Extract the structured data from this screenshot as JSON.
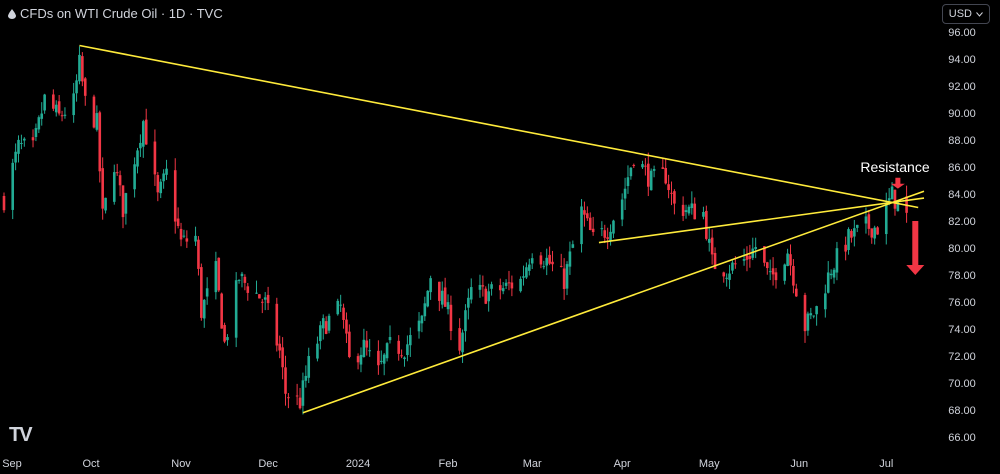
{
  "header": {
    "title": "CFDs on WTI Crude Oil · 1D · TVC",
    "currency": "USD"
  },
  "chart_data": {
    "type": "candlestick",
    "title": "CFDs on WTI Crude Oil · 1D · TVC",
    "ylim": [
      65,
      97
    ],
    "y_ticks": [
      96,
      94,
      92,
      90,
      88,
      86,
      84,
      82,
      80,
      78,
      76,
      74,
      72,
      70,
      68,
      66
    ],
    "y_tick_labels": [
      "96.00",
      "94.00",
      "92.00",
      "90.00",
      "88.00",
      "86.00",
      "84.00",
      "82.00",
      "80.00",
      "78.00",
      "76.00",
      "74.00",
      "72.00",
      "70.00",
      "68.00",
      "66.00"
    ],
    "x_ticks": [
      "Sep",
      "Oct",
      "Nov",
      "Dec",
      "2024",
      "Feb",
      "Mar",
      "Apr",
      "May",
      "Jun",
      "Jul"
    ],
    "x_tick_dates": [
      "2023-09-01",
      "2023-10-01",
      "2023-11-01",
      "2023-12-01",
      "2024-01-01",
      "2024-02-01",
      "2024-03-01",
      "2024-04-01",
      "2024-05-01",
      "2024-06-01",
      "2024-07-01"
    ],
    "x_range": [
      "2023-09-01",
      "2024-07-14"
    ],
    "colors": {
      "up": "#22ab94",
      "down": "#f23645",
      "trendline": "#ffeb3b",
      "arrow": "#f23645",
      "text": "#d1d4dc"
    },
    "close_path": [
      [
        "2023-09-01",
        83.6
      ],
      [
        "2023-09-06",
        87.5
      ],
      [
        "2023-09-11",
        87.3
      ],
      [
        "2023-09-15",
        91.0
      ],
      [
        "2023-09-20",
        89.7
      ],
      [
        "2023-09-25",
        90.8
      ],
      [
        "2023-09-27",
        93.6
      ],
      [
        "2023-09-29",
        90.8
      ],
      [
        "2023-10-03",
        89.2
      ],
      [
        "2023-10-05",
        82.3
      ],
      [
        "2023-10-09",
        86.3
      ],
      [
        "2023-10-12",
        82.9
      ],
      [
        "2023-10-16",
        86.7
      ],
      [
        "2023-10-19",
        89.4
      ],
      [
        "2023-10-24",
        83.7
      ],
      [
        "2023-10-27",
        85.5
      ],
      [
        "2023-11-01",
        80.4
      ],
      [
        "2023-11-06",
        80.8
      ],
      [
        "2023-11-08",
        75.3
      ],
      [
        "2023-11-13",
        78.3
      ],
      [
        "2023-11-16",
        72.9
      ],
      [
        "2023-11-21",
        77.8
      ],
      [
        "2023-11-28",
        76.4
      ],
      [
        "2023-11-30",
        75.9
      ],
      [
        "2023-12-05",
        72.3
      ],
      [
        "2023-12-07",
        69.3
      ],
      [
        "2023-12-12",
        68.6
      ],
      [
        "2023-12-15",
        71.4
      ],
      [
        "2023-12-20",
        74.2
      ],
      [
        "2023-12-26",
        75.6
      ],
      [
        "2023-12-29",
        71.6
      ],
      [
        "2024-01-03",
        72.7
      ],
      [
        "2024-01-08",
        70.8
      ],
      [
        "2024-01-12",
        72.7
      ],
      [
        "2024-01-17",
        72.6
      ],
      [
        "2024-01-23",
        74.5
      ],
      [
        "2024-01-26",
        78.0
      ],
      [
        "2024-01-31",
        75.8
      ],
      [
        "2024-02-05",
        72.8
      ],
      [
        "2024-02-09",
        76.8
      ],
      [
        "2024-02-14",
        76.6
      ],
      [
        "2024-02-20",
        77.0
      ],
      [
        "2024-02-26",
        77.6
      ],
      [
        "2024-03-01",
        79.9
      ],
      [
        "2024-03-06",
        79.1
      ],
      [
        "2024-03-12",
        77.6
      ],
      [
        "2024-03-18",
        82.7
      ],
      [
        "2024-03-22",
        80.6
      ],
      [
        "2024-03-27",
        81.4
      ],
      [
        "2024-04-01",
        83.7
      ],
      [
        "2024-04-05",
        86.9
      ],
      [
        "2024-04-11",
        85.0
      ],
      [
        "2024-04-16",
        85.4
      ],
      [
        "2024-04-19",
        83.1
      ],
      [
        "2024-04-24",
        82.8
      ],
      [
        "2024-04-29",
        82.6
      ],
      [
        "2024-05-02",
        78.9
      ],
      [
        "2024-05-07",
        78.4
      ],
      [
        "2024-05-13",
        79.1
      ],
      [
        "2024-05-17",
        80.1
      ],
      [
        "2024-05-22",
        77.6
      ],
      [
        "2024-05-28",
        79.8
      ],
      [
        "2024-06-03",
        74.2
      ],
      [
        "2024-06-07",
        75.5
      ],
      [
        "2024-06-12",
        78.5
      ],
      [
        "2024-06-18",
        80.7
      ],
      [
        "2024-06-24",
        81.6
      ],
      [
        "2024-06-28",
        81.5
      ],
      [
        "2024-07-03",
        83.9
      ],
      [
        "2024-07-08",
        82.3
      ]
    ],
    "trendlines": [
      {
        "from": [
          "2023-09-27",
          95.0
        ],
        "to": [
          "2024-07-12",
          83.0
        ]
      },
      {
        "from": [
          "2023-12-13",
          67.8
        ],
        "to": [
          "2024-07-14",
          84.2
        ]
      },
      {
        "from": [
          "2024-03-24",
          80.4
        ],
        "to": [
          "2024-07-14",
          83.7
        ]
      }
    ],
    "annotations": [
      {
        "text": "Resistance",
        "date": "2024-07-04",
        "value": 86.0
      }
    ],
    "arrows": [
      {
        "date": "2024-07-05",
        "from_value": 85.2,
        "to_value": 84.4,
        "direction": "down"
      },
      {
        "date": "2024-07-11",
        "from_value": 82.0,
        "to_value": 78.0,
        "direction": "down"
      }
    ]
  }
}
